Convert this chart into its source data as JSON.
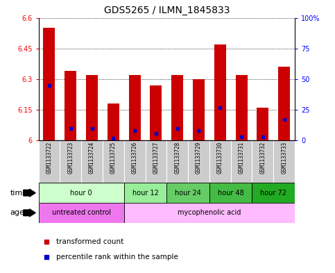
{
  "title": "GDS5265 / ILMN_1845833",
  "samples": [
    "GSM1133722",
    "GSM1133723",
    "GSM1133724",
    "GSM1133725",
    "GSM1133726",
    "GSM1133727",
    "GSM1133728",
    "GSM1133729",
    "GSM1133730",
    "GSM1133731",
    "GSM1133732",
    "GSM1133733"
  ],
  "transformed_counts": [
    6.55,
    6.34,
    6.32,
    6.18,
    6.32,
    6.27,
    6.32,
    6.3,
    6.47,
    6.32,
    6.16,
    6.36
  ],
  "percentile_ranks": [
    45,
    10,
    10,
    2,
    8,
    6,
    10,
    8,
    27,
    3,
    3,
    17
  ],
  "y_min": 6.0,
  "y_max": 6.6,
  "y_ticks": [
    6.0,
    6.15,
    6.3,
    6.45,
    6.6
  ],
  "y_tick_labels": [
    "6",
    "6.15",
    "6.3",
    "6.45",
    "6.6"
  ],
  "right_y_ticks": [
    0,
    25,
    50,
    75,
    100
  ],
  "right_y_tick_labels": [
    "0",
    "25",
    "50",
    "75",
    "100%"
  ],
  "bar_color": "#cc0000",
  "percentile_color": "#0000cc",
  "time_groups": [
    {
      "label": "hour 0",
      "start": 0,
      "end": 3,
      "color": "#ccffcc"
    },
    {
      "label": "hour 12",
      "start": 4,
      "end": 5,
      "color": "#99ee99"
    },
    {
      "label": "hour 24",
      "start": 6,
      "end": 7,
      "color": "#66cc66"
    },
    {
      "label": "hour 48",
      "start": 8,
      "end": 9,
      "color": "#44bb44"
    },
    {
      "label": "hour 72",
      "start": 10,
      "end": 11,
      "color": "#22aa22"
    }
  ],
  "agent_groups": [
    {
      "label": "untreated control",
      "start": 0,
      "end": 3,
      "color": "#ee77ee"
    },
    {
      "label": "mycophenolic acid",
      "start": 4,
      "end": 11,
      "color": "#ffbbff"
    }
  ],
  "legend_items": [
    {
      "label": "transformed count",
      "color": "#cc0000"
    },
    {
      "label": "percentile rank within the sample",
      "color": "#0000cc"
    }
  ],
  "time_label": "time",
  "agent_label": "agent",
  "sample_bg_color": "#cccccc",
  "grid_color": "#000000",
  "title_fontsize": 10,
  "tick_fontsize": 7,
  "bar_width": 0.55
}
